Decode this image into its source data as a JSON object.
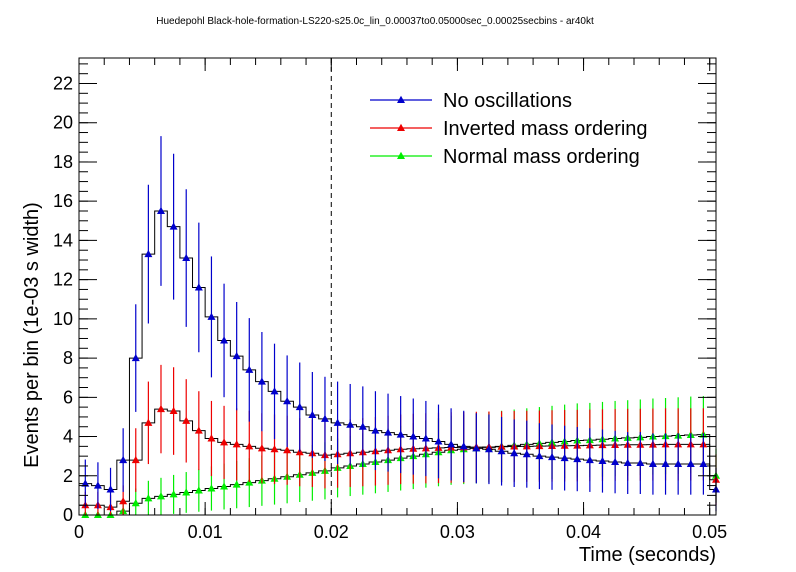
{
  "chart_data": {
    "type": "line",
    "title": "Huedepohl Black-hole-formation-LS220-s25.0c_lin_0.00037to0.05000sec_0.00025secbins - ar40kt",
    "xlabel": "Time (seconds)",
    "ylabel": "Events per bin (1e-03 s width)",
    "xlim": [
      0,
      0.0505
    ],
    "ylim": [
      0,
      23.3
    ],
    "x_ticks": [
      0,
      0.01,
      0.02,
      0.03,
      0.04,
      0.05
    ],
    "x_tick_labels": [
      "0",
      "0.01",
      "0.02",
      "0.03",
      "0.04",
      "0.05"
    ],
    "y_ticks": [
      0,
      2,
      4,
      6,
      8,
      10,
      12,
      14,
      16,
      18,
      20,
      22
    ],
    "y_tick_labels": [
      "0",
      "2",
      "4",
      "6",
      "8",
      "10",
      "12",
      "14",
      "16",
      "18",
      "20",
      "22"
    ],
    "vertical_marker": 0.02,
    "bin_width": 0.001,
    "x": [
      0.0005,
      0.0015,
      0.0025,
      0.0035,
      0.0045,
      0.0055,
      0.0065,
      0.0075,
      0.0085,
      0.0095,
      0.0105,
      0.0115,
      0.0125,
      0.0135,
      0.0145,
      0.0155,
      0.0165,
      0.0175,
      0.0185,
      0.0195,
      0.0205,
      0.0215,
      0.0225,
      0.0235,
      0.0245,
      0.0255,
      0.0265,
      0.0275,
      0.0285,
      0.0295,
      0.0305,
      0.0315,
      0.0325,
      0.0335,
      0.0345,
      0.0355,
      0.0365,
      0.0375,
      0.0385,
      0.0395,
      0.0405,
      0.0415,
      0.0425,
      0.0435,
      0.0445,
      0.0455,
      0.0465,
      0.0475,
      0.0485,
      0.0495,
      0.0505
    ],
    "legend_position": "top-right",
    "series": [
      {
        "name": "No oscillations",
        "color": "#0000cc",
        "values": [
          1.6,
          1.5,
          1.3,
          2.8,
          8.0,
          13.3,
          15.5,
          14.7,
          13.1,
          11.6,
          10.1,
          8.9,
          8.1,
          7.4,
          6.8,
          6.3,
          5.8,
          5.5,
          5.1,
          4.9,
          4.7,
          4.6,
          4.5,
          4.3,
          4.2,
          4.1,
          4.0,
          3.9,
          3.75,
          3.6,
          3.5,
          3.4,
          3.35,
          3.25,
          3.15,
          3.1,
          3.0,
          2.95,
          2.9,
          2.85,
          2.8,
          2.75,
          2.7,
          2.65,
          2.65,
          2.6,
          2.6,
          2.6,
          2.6,
          2.6,
          1.3
        ]
      },
      {
        "name": "Inverted mass ordering",
        "color": "#ee0000",
        "values": [
          0.5,
          0.5,
          0.4,
          0.7,
          2.8,
          4.7,
          5.4,
          5.3,
          4.8,
          4.3,
          3.9,
          3.7,
          3.6,
          3.5,
          3.4,
          3.35,
          3.3,
          3.2,
          3.15,
          3.05,
          3.1,
          3.15,
          3.2,
          3.25,
          3.3,
          3.35,
          3.38,
          3.4,
          3.42,
          3.44,
          3.45,
          3.46,
          3.47,
          3.48,
          3.49,
          3.5,
          3.51,
          3.52,
          3.53,
          3.54,
          3.55,
          3.56,
          3.57,
          3.58,
          3.58,
          3.59,
          3.6,
          3.6,
          3.6,
          3.6,
          1.8
        ]
      },
      {
        "name": "Normal mass ordering",
        "color": "#00ee00",
        "values": [
          0.0,
          0.0,
          0.0,
          0.2,
          0.6,
          0.85,
          0.95,
          1.05,
          1.15,
          1.25,
          1.35,
          1.45,
          1.55,
          1.65,
          1.75,
          1.85,
          1.95,
          2.05,
          2.15,
          2.25,
          2.4,
          2.5,
          2.6,
          2.7,
          2.8,
          2.9,
          3.0,
          3.1,
          3.2,
          3.3,
          3.35,
          3.4,
          3.45,
          3.5,
          3.55,
          3.6,
          3.65,
          3.7,
          3.75,
          3.8,
          3.82,
          3.86,
          3.9,
          3.93,
          3.96,
          4.0,
          4.02,
          4.05,
          4.08,
          4.1,
          2.0
        ]
      }
    ]
  }
}
